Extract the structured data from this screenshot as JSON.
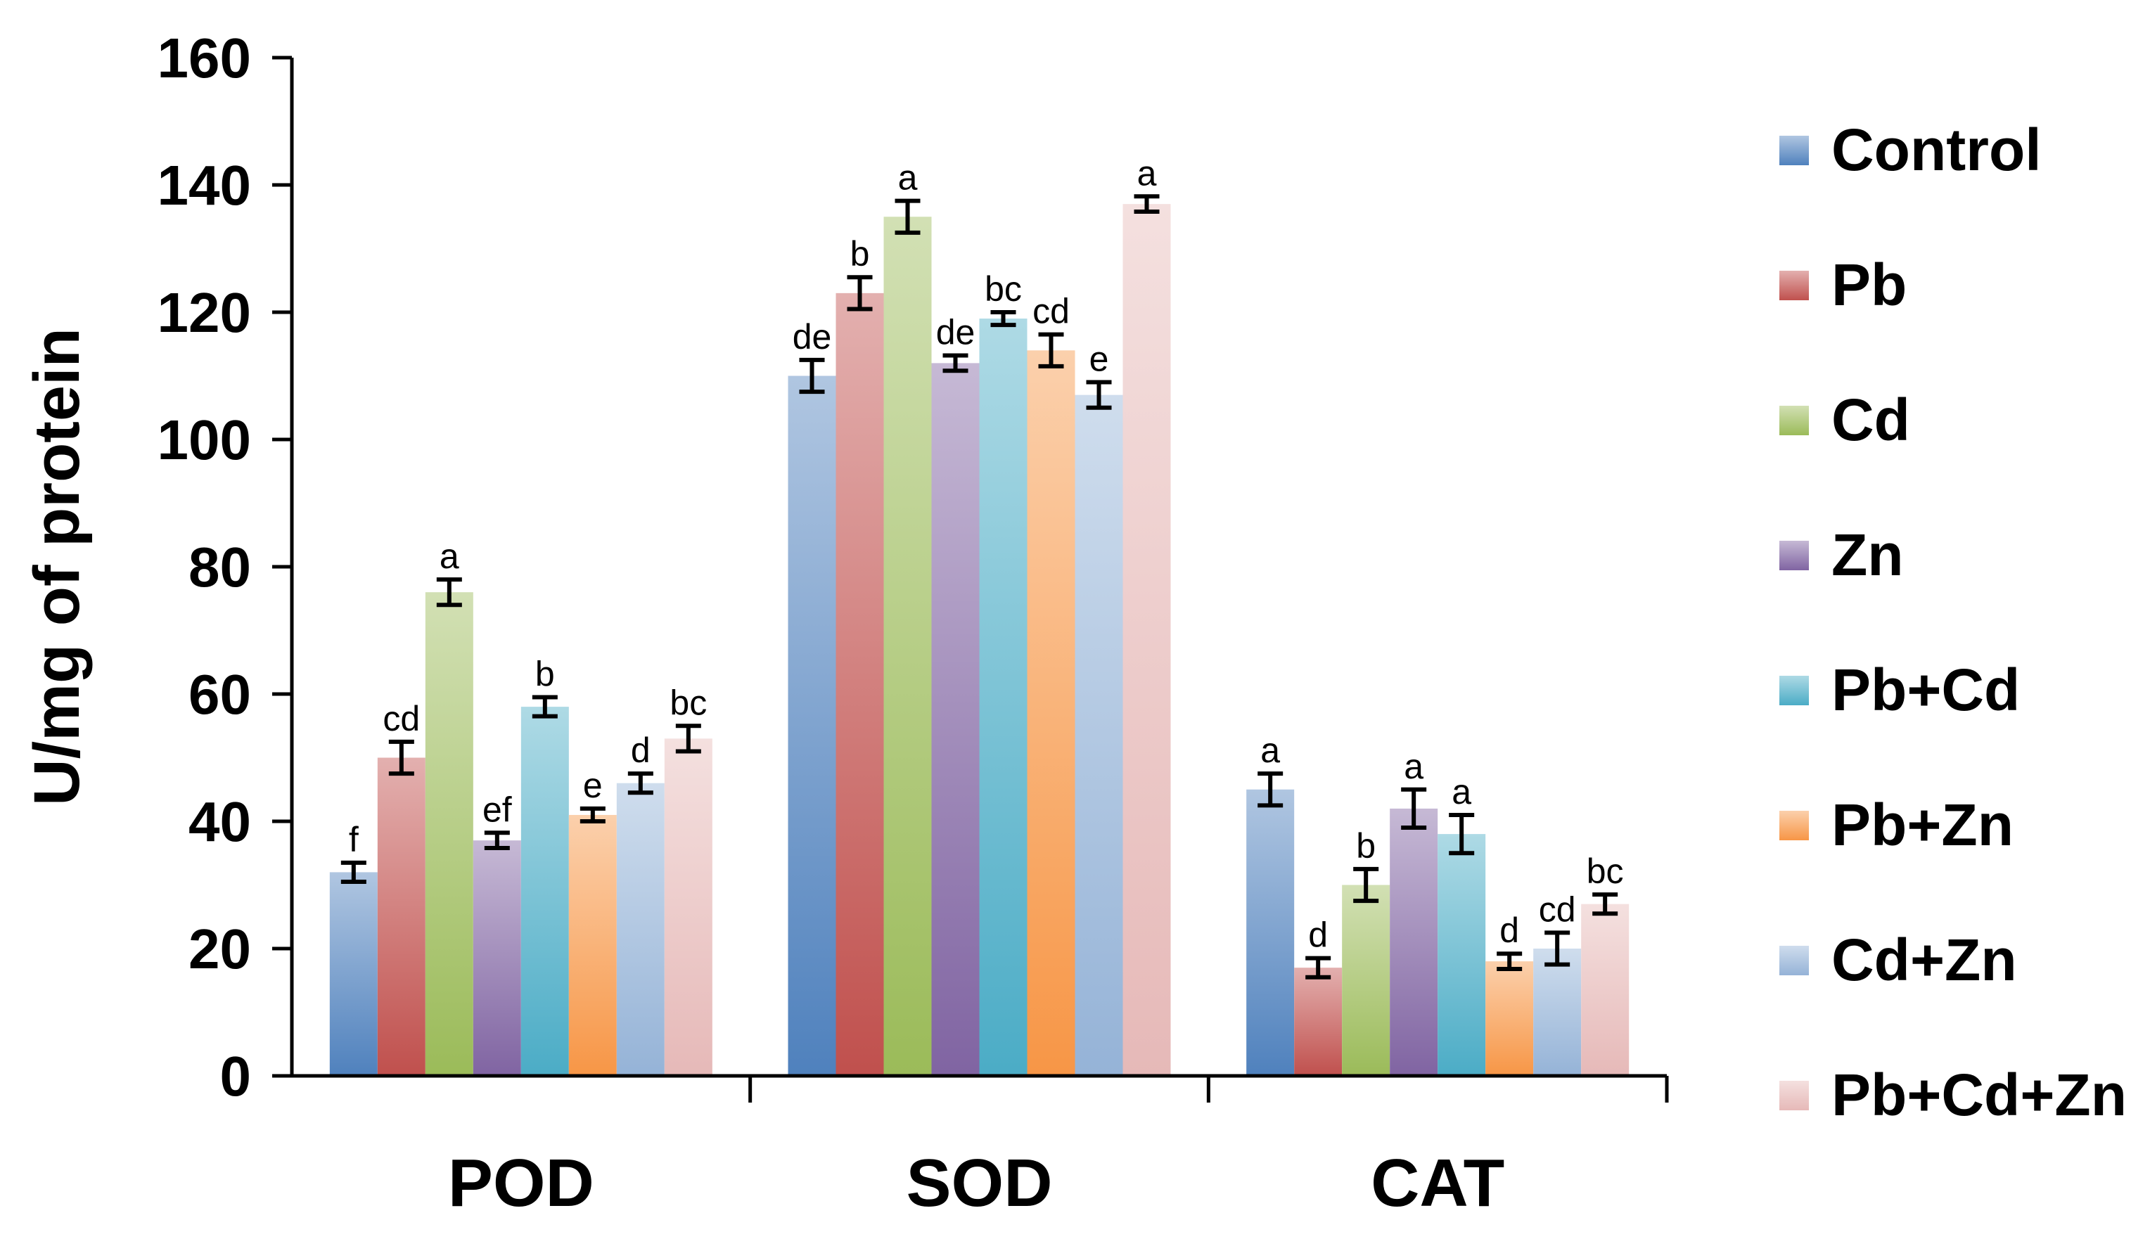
{
  "chart_data": {
    "type": "bar",
    "title": "",
    "xlabel": "",
    "ylabel": "U/mg of protein",
    "ylim": [
      0,
      160
    ],
    "yticks": [
      0,
      20,
      40,
      60,
      80,
      100,
      120,
      140,
      160
    ],
    "grid": false,
    "legend_position": "right",
    "categories": [
      "POD",
      "SOD",
      "CAT"
    ],
    "series": [
      {
        "name": "Control",
        "color": "#4F81BD",
        "values": [
          32,
          110,
          45
        ],
        "errors": [
          1.5,
          2.5,
          2.5
        ],
        "letters": [
          "f",
          "de",
          "a"
        ]
      },
      {
        "name": "Pb",
        "color": "#C0504D",
        "values": [
          50,
          123,
          17
        ],
        "errors": [
          2.5,
          2.5,
          1.5
        ],
        "letters": [
          "cd",
          "b",
          "d"
        ]
      },
      {
        "name": "Cd",
        "color": "#9BBB59",
        "values": [
          76,
          135,
          30
        ],
        "errors": [
          2.0,
          2.5,
          2.5
        ],
        "letters": [
          "a",
          "a",
          "b"
        ]
      },
      {
        "name": "Zn",
        "color": "#8064A2",
        "values": [
          37,
          112,
          42
        ],
        "errors": [
          1.2,
          1.2,
          3.0
        ],
        "letters": [
          "ef",
          "de",
          "a"
        ]
      },
      {
        "name": "Pb+Cd",
        "color": "#4BACC6",
        "values": [
          58,
          119,
          38
        ],
        "errors": [
          1.5,
          1.0,
          3.0
        ],
        "letters": [
          "b",
          "bc",
          "a"
        ]
      },
      {
        "name": "Pb+Zn",
        "color": "#F79646",
        "values": [
          41,
          114,
          18
        ],
        "errors": [
          1.0,
          2.5,
          1.2
        ],
        "letters": [
          "e",
          "cd",
          "d"
        ]
      },
      {
        "name": "Cd+Zn",
        "color": "#95B3D7",
        "values": [
          46,
          107,
          20
        ],
        "errors": [
          1.5,
          2.0,
          2.5
        ],
        "letters": [
          "d",
          "e",
          "cd"
        ]
      },
      {
        "name": "Pb+Cd+Zn",
        "color": "#E6B9B8",
        "values": [
          53,
          137,
          27
        ],
        "errors": [
          2.0,
          1.2,
          1.5
        ],
        "letters": [
          "bc",
          "a",
          "bc"
        ]
      }
    ]
  }
}
